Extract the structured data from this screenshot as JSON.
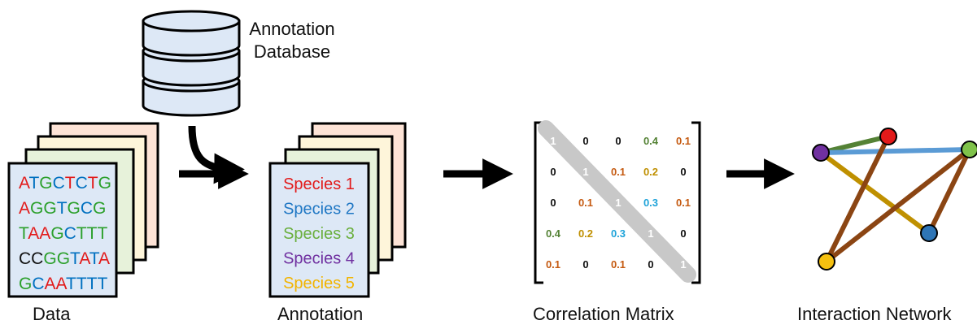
{
  "database": {
    "line1": "Annotation",
    "line2": "Database"
  },
  "data_panel": {
    "label": "Data",
    "sequences": [
      {
        "text": "ATGCTCTG",
        "colors": [
          "#e21a1a",
          "#0070c0",
          "#2ca02c",
          "#0070c0",
          "#e21a1a",
          "#0070c0",
          "#e21a1a",
          "#2ca02c"
        ]
      },
      {
        "text": "AGGTGCG",
        "colors": [
          "#e21a1a",
          "#2ca02c",
          "#2ca02c",
          "#0070c0",
          "#2ca02c",
          "#0070c0",
          "#2ca02c"
        ]
      },
      {
        "text": "TAAGCTTT",
        "colors": [
          "#2ca02c",
          "#e21a1a",
          "#e21a1a",
          "#2ca02c",
          "#0070c0",
          "#2ca02c",
          "#2ca02c",
          "#2ca02c"
        ]
      },
      {
        "text": "CCGGTATA",
        "colors": [
          "#111111",
          "#111111",
          "#2ca02c",
          "#2ca02c",
          "#0070c0",
          "#e21a1a",
          "#0070c0",
          "#e21a1a"
        ]
      },
      {
        "text": "GCAATTTT",
        "colors": [
          "#2ca02c",
          "#0070c0",
          "#e21a1a",
          "#e21a1a",
          "#0070c0",
          "#0070c0",
          "#0070c0",
          "#0070c0"
        ]
      }
    ],
    "back_card_colors": [
      "#fde3d6",
      "#fef5da",
      "#e7f2da"
    ],
    "front_card_color": "#dde8f6"
  },
  "annotation_panel": {
    "label": "Annotation",
    "species": [
      {
        "name": "Species 1",
        "color": "#e21a1a"
      },
      {
        "name": "Species 2",
        "color": "#1f77c4"
      },
      {
        "name": "Species 3",
        "color": "#6aaf3d"
      },
      {
        "name": "Species 4",
        "color": "#7030a0"
      },
      {
        "name": "Species 5",
        "color": "#f2b400"
      }
    ],
    "back_card_colors": [
      "#fde3d6",
      "#fef5da",
      "#e7f2da"
    ],
    "front_card_color": "#dde8f6"
  },
  "correlation_matrix": {
    "label": "Correlation Matrix",
    "rows": [
      [
        "1",
        "0",
        "0",
        "0.4",
        "0.1"
      ],
      [
        "0",
        "1",
        "0.1",
        "0.2",
        "0"
      ],
      [
        "0",
        "0.1",
        "1",
        "0.3",
        "0.1"
      ],
      [
        "0.4",
        "0.2",
        "0.3",
        "1",
        "0"
      ],
      [
        "0.1",
        "0",
        "0.1",
        "0",
        "1"
      ]
    ],
    "value_colors": {
      "0": "#111111",
      "0.1": "#c55a11",
      "0.2": "#bf8f00",
      "0.3": "#1fa3d9",
      "0.4": "#548235",
      "1": "#ffffff"
    },
    "diagonal_color": "#c8c8c8"
  },
  "network": {
    "label": "Interaction Network",
    "nodes": [
      {
        "id": "red",
        "color": "#e21a1a"
      },
      {
        "id": "purple",
        "color": "#7030a0"
      },
      {
        "id": "green",
        "color": "#7fc24a"
      },
      {
        "id": "blue",
        "color": "#2e75b6"
      },
      {
        "id": "yellow",
        "color": "#f5c010"
      }
    ],
    "edges": [
      {
        "from": "purple",
        "to": "red",
        "color": "#548235"
      },
      {
        "from": "purple",
        "to": "green",
        "color": "#5b9bd5"
      },
      {
        "from": "purple",
        "to": "blue",
        "color": "#bf9000"
      },
      {
        "from": "red",
        "to": "yellow",
        "color": "#8b4513"
      },
      {
        "from": "green",
        "to": "blue",
        "color": "#8b4513"
      },
      {
        "from": "green",
        "to": "yellow",
        "color": "#8b4513"
      }
    ]
  }
}
